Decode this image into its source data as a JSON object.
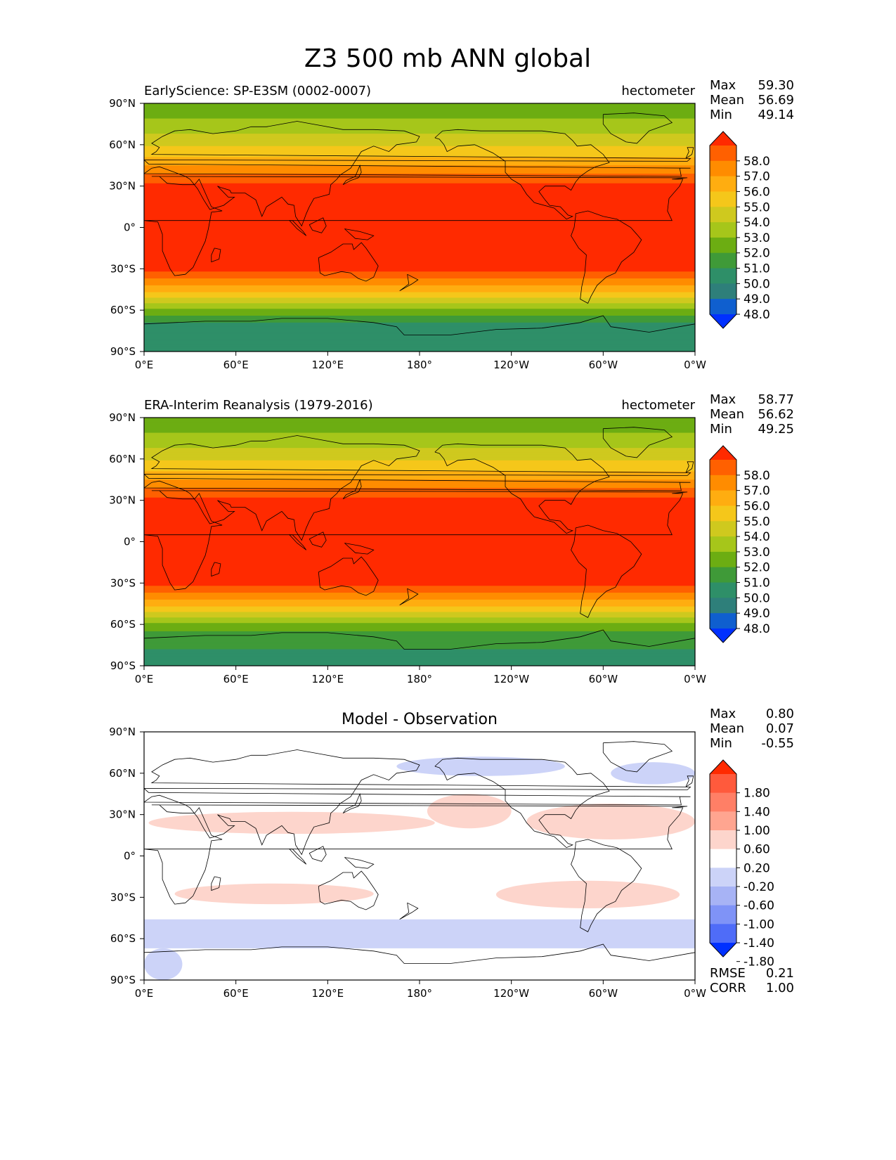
{
  "figure": {
    "title": "Z3 500 mb ANN global"
  },
  "chart_data": [
    {
      "type": "heatmap",
      "key": "test",
      "title_left": "EarlyScience: SP-E3SM (0002-0007)",
      "title_right": "hectometer",
      "title_center": "",
      "xlabel": "",
      "ylabel": "",
      "xlim": [
        0,
        360
      ],
      "ylim": [
        -90,
        90
      ],
      "x_ticks": [
        "0°E",
        "60°E",
        "120°E",
        "180°",
        "120°W",
        "60°W",
        "0°W"
      ],
      "y_ticks": [
        "90°N",
        "60°N",
        "30°N",
        "0°",
        "30°S",
        "60°S",
        "90°S"
      ],
      "stats": [
        {
          "label": "Max",
          "value": "59.30"
        },
        {
          "label": "Mean",
          "value": "56.69"
        },
        {
          "label": "Min",
          "value": "49.14"
        }
      ],
      "colorbar": {
        "labels": [
          "58.0",
          "57.0",
          "56.0",
          "55.0",
          "54.0",
          "53.0",
          "52.0",
          "51.0",
          "50.0",
          "49.0",
          "48.0"
        ],
        "colors": [
          "#ff2a00",
          "#ff6000",
          "#ff8c00",
          "#ffad10",
          "#f5c71a",
          "#cfc91e",
          "#a6c61a",
          "#6cad12",
          "#3f9a38",
          "#2e8f68",
          "#2e7f7a",
          "#0f5fcf",
          "#0030ff"
        ]
      },
      "lat_profile": [
        {
          "lat": 90,
          "value": 51.6
        },
        {
          "lat": 80,
          "value": 51.9
        },
        {
          "lat": 70,
          "value": 52.8
        },
        {
          "lat": 60,
          "value": 53.8
        },
        {
          "lat": 50,
          "value": 55.2
        },
        {
          "lat": 40,
          "value": 56.8
        },
        {
          "lat": 30,
          "value": 58.3
        },
        {
          "lat": 0,
          "value": 58.8
        },
        {
          "lat": -30,
          "value": 58.3
        },
        {
          "lat": -40,
          "value": 56.5
        },
        {
          "lat": -50,
          "value": 54.2
        },
        {
          "lat": -60,
          "value": 51.8
        },
        {
          "lat": -70,
          "value": 49.9
        },
        {
          "lat": -80,
          "value": 49.4
        },
        {
          "lat": -90,
          "value": 49.3
        }
      ]
    },
    {
      "type": "heatmap",
      "key": "ref",
      "title_left": "ERA-Interim Reanalysis (1979-2016)",
      "title_right": "hectometer",
      "title_center": "",
      "xlabel": "",
      "ylabel": "",
      "xlim": [
        0,
        360
      ],
      "ylim": [
        -90,
        90
      ],
      "x_ticks": [
        "0°E",
        "60°E",
        "120°E",
        "180°",
        "120°W",
        "60°W",
        "0°W"
      ],
      "y_ticks": [
        "90°N",
        "60°N",
        "30°N",
        "0°",
        "30°S",
        "60°S",
        "90°S"
      ],
      "stats": [
        {
          "label": "Max",
          "value": "58.77"
        },
        {
          "label": "Mean",
          "value": "56.62"
        },
        {
          "label": "Min",
          "value": "49.25"
        }
      ],
      "colorbar": {
        "labels": [
          "58.0",
          "57.0",
          "56.0",
          "55.0",
          "54.0",
          "53.0",
          "52.0",
          "51.0",
          "50.0",
          "49.0",
          "48.0"
        ],
        "colors": [
          "#ff2a00",
          "#ff6000",
          "#ff8c00",
          "#ffad10",
          "#f5c71a",
          "#cfc91e",
          "#a6c61a",
          "#6cad12",
          "#3f9a38",
          "#2e8f68",
          "#2e7f7a",
          "#0f5fcf",
          "#0030ff"
        ]
      },
      "lat_profile": [
        {
          "lat": 90,
          "value": 51.6
        },
        {
          "lat": 80,
          "value": 51.9
        },
        {
          "lat": 70,
          "value": 52.8
        },
        {
          "lat": 60,
          "value": 53.8
        },
        {
          "lat": 50,
          "value": 55.2
        },
        {
          "lat": 40,
          "value": 56.8
        },
        {
          "lat": 30,
          "value": 58.3
        },
        {
          "lat": 0,
          "value": 58.8
        },
        {
          "lat": -30,
          "value": 58.3
        },
        {
          "lat": -40,
          "value": 56.5
        },
        {
          "lat": -50,
          "value": 54.2
        },
        {
          "lat": -60,
          "value": 51.8
        },
        {
          "lat": -70,
          "value": 50.3
        },
        {
          "lat": -80,
          "value": 49.9
        },
        {
          "lat": -90,
          "value": 49.5
        }
      ]
    },
    {
      "type": "heatmap",
      "key": "diff",
      "title_left": "",
      "title_right": "",
      "title_center": "Model - Observation",
      "xlabel": "",
      "ylabel": "",
      "xlim": [
        0,
        360
      ],
      "ylim": [
        -90,
        90
      ],
      "x_ticks": [
        "0°E",
        "60°E",
        "120°E",
        "180°",
        "120°W",
        "60°W",
        "0°W"
      ],
      "y_ticks": [
        "90°N",
        "60°N",
        "30°N",
        "0°",
        "30°S",
        "60°S",
        "90°S"
      ],
      "stats": [
        {
          "label": "Max",
          "value": "0.80"
        },
        {
          "label": "Mean",
          "value": "0.07"
        },
        {
          "label": "Min",
          "value": "-0.55"
        }
      ],
      "extra_stats": [
        {
          "label": "RMSE",
          "value": "0.21"
        },
        {
          "label": "CORR",
          "value": "1.00"
        }
      ],
      "colorbar": {
        "labels": [
          "1.80",
          "1.40",
          "1.00",
          "0.60",
          "0.20",
          "-0.20",
          "-0.60",
          "-1.00",
          "-1.40",
          "-1.80"
        ],
        "colors": [
          "#ff2a00",
          "#ff5a3c",
          "#ff7f66",
          "#ffa590",
          "#fdd5cc",
          "#ffffff",
          "#ccd3f8",
          "#a7b3f5",
          "#7f93f7",
          "#4f6cf8",
          "#0030ff"
        ]
      },
      "positive_regions": [
        {
          "lon": [
            3,
            190
          ],
          "lat": [
            16,
            32
          ]
        },
        {
          "lon": [
            250,
            360
          ],
          "lat": [
            12,
            38
          ]
        },
        {
          "lon": [
            185,
            240
          ],
          "lat": [
            20,
            45
          ]
        },
        {
          "lon": [
            20,
            150
          ],
          "lat": [
            -35,
            -20
          ]
        },
        {
          "lon": [
            230,
            350
          ],
          "lat": [
            -38,
            -18
          ]
        }
      ],
      "negative_regions": [
        {
          "lon": [
            0,
            360
          ],
          "lat": [
            -67,
            -46
          ]
        },
        {
          "lon": [
            0,
            25
          ],
          "lat": [
            -90,
            -67
          ]
        },
        {
          "lon": [
            165,
            275
          ],
          "lat": [
            58,
            72
          ]
        },
        {
          "lon": [
            305,
            360
          ],
          "lat": [
            52,
            68
          ]
        }
      ]
    }
  ]
}
